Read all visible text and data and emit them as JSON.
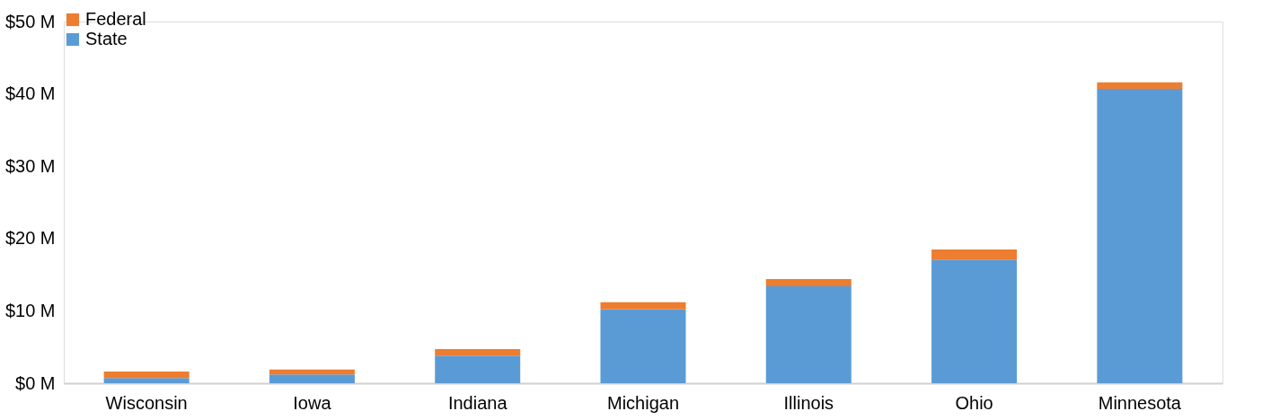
{
  "chart_data": {
    "type": "bar",
    "stacked": true,
    "categories": [
      "Wisconsin",
      "Iowa",
      "Indiana",
      "Michigan",
      "Illinois",
      "Ohio",
      "Minnesota"
    ],
    "series": [
      {
        "name": "State",
        "color": "#5b9bd5",
        "values": [
          0.7,
          1.2,
          3.8,
          10.2,
          13.4,
          17.1,
          40.7
        ]
      },
      {
        "name": "Federal",
        "color": "#ed7d31",
        "values": [
          0.9,
          0.7,
          0.9,
          1.0,
          1.0,
          1.4,
          0.9
        ]
      }
    ],
    "ylim": [
      0,
      50
    ],
    "yticks": [
      {
        "value": 0,
        "label": "$0 M"
      },
      {
        "value": 10,
        "label": "$10 M"
      },
      {
        "value": 20,
        "label": "$20 M"
      },
      {
        "value": 30,
        "label": "$30 M"
      },
      {
        "value": 40,
        "label": "$40 M"
      },
      {
        "value": 50,
        "label": "$50 M"
      }
    ],
    "grid": false,
    "legend": "top"
  }
}
